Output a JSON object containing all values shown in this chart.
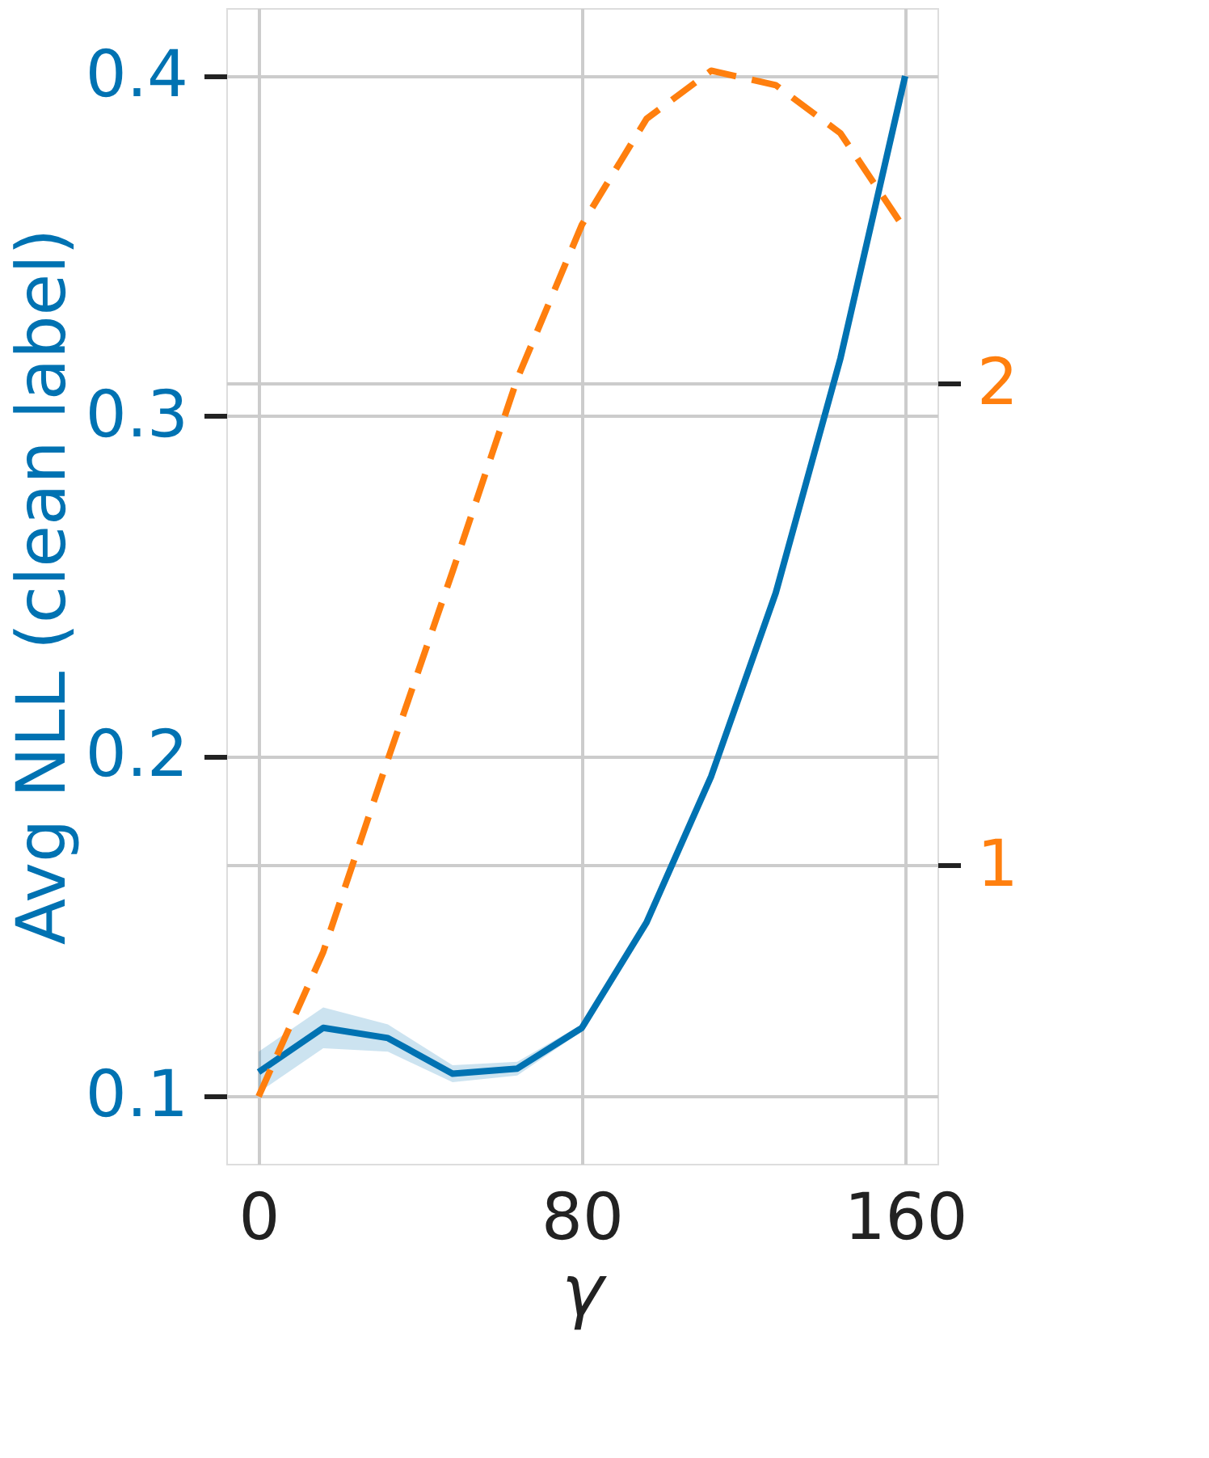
{
  "chart_data": {
    "type": "line",
    "xlabel": "γ",
    "ylabel": "Avg NLL (clean label)",
    "x": [
      0,
      16,
      32,
      48,
      64,
      80,
      96,
      112,
      128,
      144,
      160
    ],
    "xlim": [
      -8,
      168
    ],
    "xticks": [
      0,
      80,
      160
    ],
    "ylim": [
      0.08,
      0.42
    ],
    "yticks": [
      0.1,
      0.2,
      0.3,
      0.4
    ],
    "y2lim": [
      0.38,
      2.78
    ],
    "y2ticks": [
      1,
      2
    ],
    "grid": true,
    "series": [
      {
        "color": "#0072b2",
        "line_style": "solid",
        "values": [
          0.107,
          0.12,
          0.117,
          0.1065,
          0.108,
          0.12,
          0.151,
          0.194,
          0.248,
          0.317,
          0.4
        ],
        "lower": [
          0.101,
          0.114,
          0.113,
          0.104,
          0.106,
          0.119,
          0.15,
          0.193,
          0.247,
          0.316,
          0.399
        ],
        "upper": [
          0.113,
          0.126,
          0.121,
          0.109,
          0.11,
          0.121,
          0.152,
          0.195,
          0.249,
          0.318,
          0.401
        ]
      },
      {
        "color": "#ff7f0e",
        "line_style": "dashed",
        "axis": "y2",
        "values": [
          0.52,
          0.82,
          1.22,
          1.61,
          2.01,
          2.33,
          2.55,
          2.65,
          2.62,
          2.52,
          2.32
        ]
      }
    ]
  }
}
